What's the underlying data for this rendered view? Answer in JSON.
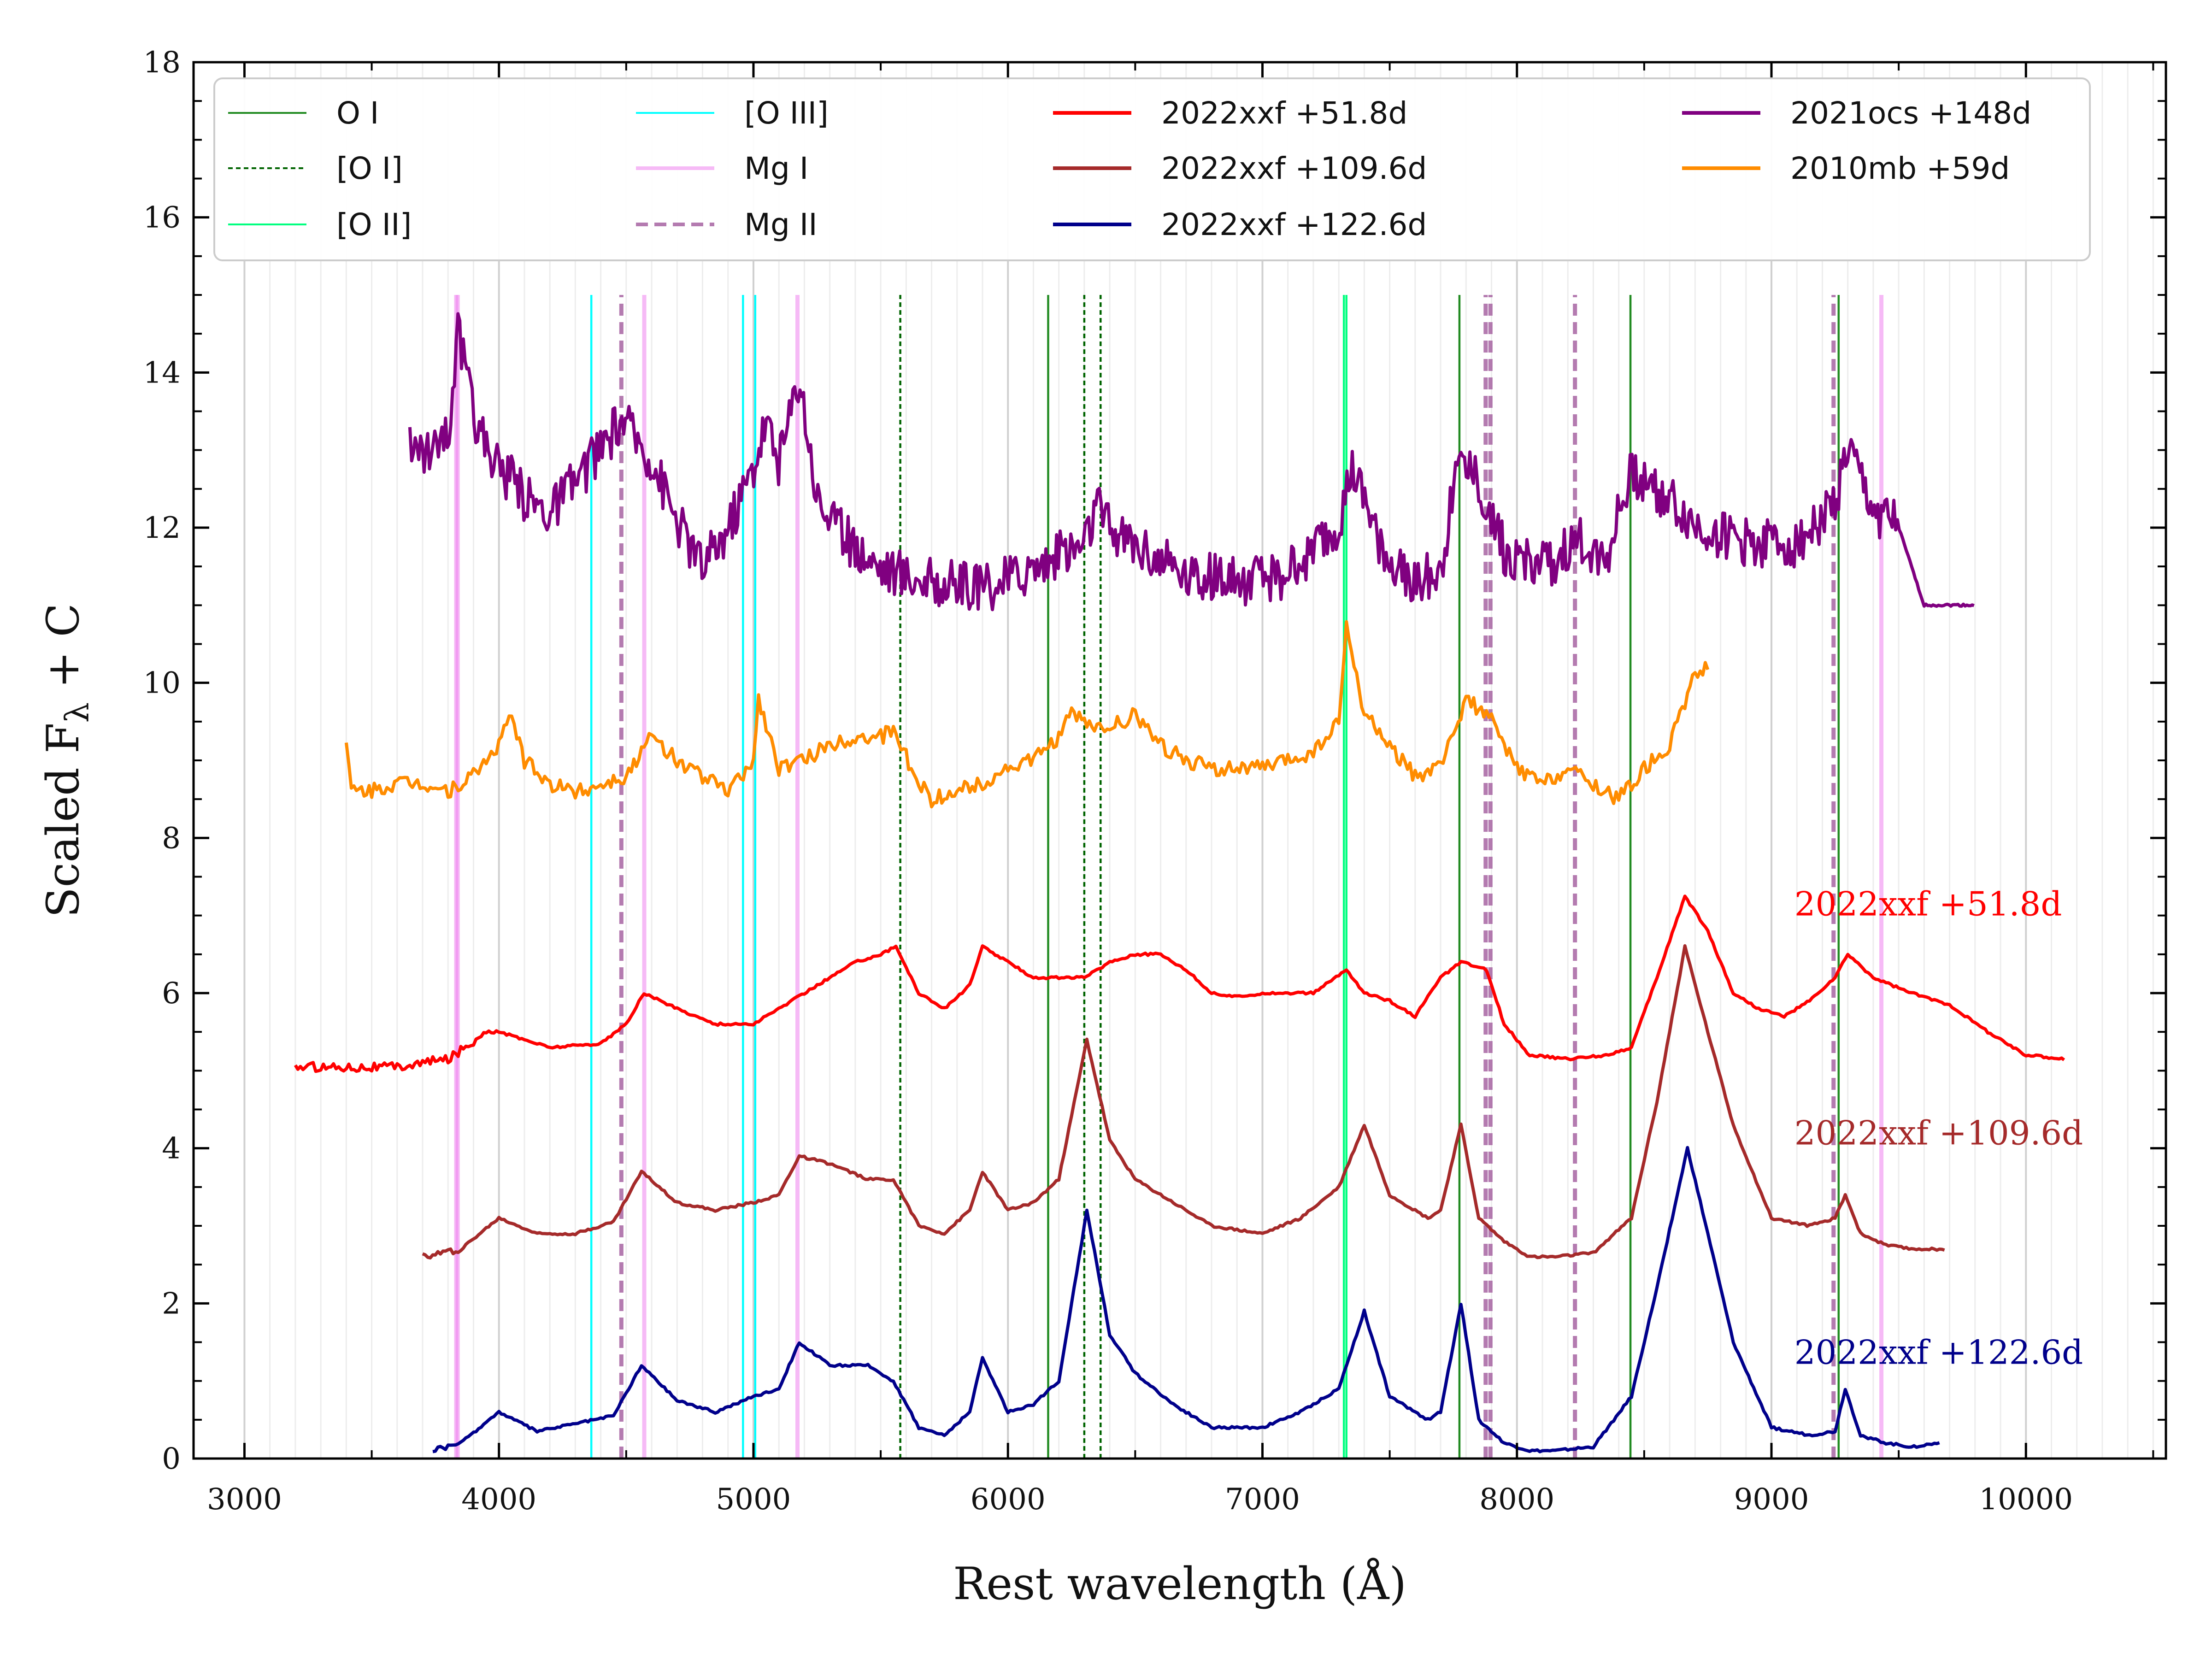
{
  "chart_data": {
    "type": "line",
    "title": "",
    "xlabel": "Rest wavelength (Å)",
    "ylabel_main": "Scaled F",
    "ylabel_sub": "λ",
    "ylabel_tail": " + C",
    "xlim": [
      2800,
      10550
    ],
    "ylim": [
      0,
      18
    ],
    "x_ticks": [
      3000,
      4000,
      5000,
      6000,
      7000,
      8000,
      9000,
      10000
    ],
    "x_tick_labels": [
      "3000",
      "4000",
      "5000",
      "6000",
      "7000",
      "8000",
      "9000",
      "10000"
    ],
    "y_ticks": [
      0,
      2,
      4,
      6,
      8,
      10,
      12,
      14,
      16,
      18
    ],
    "y_tick_labels": [
      "0",
      "2",
      "4",
      "6",
      "8",
      "10",
      "12",
      "14",
      "16",
      "18"
    ],
    "legend": [
      {
        "label": "O I",
        "color": "#228b22",
        "style": "solid",
        "width": 1
      },
      {
        "label": "[O I]",
        "color": "#006400",
        "style": "dotted",
        "width": 1
      },
      {
        "label": "[O II]",
        "color": "#00ff7f",
        "style": "solid",
        "width": 1
      },
      {
        "label": "[O III]",
        "color": "#00ffff",
        "style": "solid",
        "width": 1
      },
      {
        "label": "Mg I",
        "color": "#ee82ee",
        "style": "solid",
        "width": 2
      },
      {
        "label": "Mg II",
        "color": "#9b4f96",
        "style": "dashed",
        "width": 2
      },
      {
        "label": "2022xxf +51.8d",
        "color": "#ff0000",
        "style": "solid",
        "width": 3
      },
      {
        "label": "2022xxf +109.6d",
        "color": "#a52a2a",
        "style": "solid",
        "width": 3
      },
      {
        "label": "2022xxf +122.6d",
        "color": "#00008b",
        "style": "solid",
        "width": 3
      },
      {
        "label": "2021ocs +148d",
        "color": "#800080",
        "style": "solid",
        "width": 3
      },
      {
        "label": "2010mb +59d",
        "color": "#ff8c00",
        "style": "solid",
        "width": 3
      }
    ],
    "line_markers": [
      {
        "ion": "O I",
        "wavelengths": [
          6158,
          7774,
          8446,
          9264
        ]
      },
      {
        "ion": "[O I]",
        "wavelengths": [
          5577,
          6300,
          6364
        ]
      },
      {
        "ion": "[O II]",
        "wavelengths": [
          7320,
          7330
        ]
      },
      {
        "ion": "[O III]",
        "wavelengths": [
          4363,
          4959,
          5007
        ]
      },
      {
        "ion": "Mg I",
        "wavelengths": [
          3832,
          3838,
          4571,
          5173,
          9432
        ]
      },
      {
        "ion": "Mg II",
        "wavelengths": [
          4481,
          7877,
          7896,
          8228,
          9244
        ]
      }
    ],
    "series_labels": [
      {
        "text": "2022xxf +51.8d",
        "color": "#ff0000",
        "x": 9090,
        "y": 7.0
      },
      {
        "text": "2022xxf +109.6d",
        "color": "#a52a2a",
        "x": 9090,
        "y": 4.05
      },
      {
        "text": "2022xxf +122.6d",
        "color": "#00008b",
        "x": 9090,
        "y": 1.22
      }
    ],
    "series": [
      {
        "name": "2022xxf +51.8d",
        "color": "#ff0000",
        "noise": 0.06,
        "noise_until": 3900,
        "x": [
          3200,
          3400,
          3600,
          3800,
          3950,
          4000,
          4200,
          4400,
          4500,
          4570,
          4700,
          4850,
          5000,
          5100,
          5200,
          5400,
          5500,
          5560,
          5650,
          5750,
          5850,
          5900,
          6000,
          6100,
          6200,
          6300,
          6400,
          6500,
          6600,
          6700,
          6800,
          6900,
          7000,
          7200,
          7330,
          7400,
          7500,
          7600,
          7700,
          7780,
          7880,
          7950,
          8050,
          8200,
          8350,
          8450,
          8550,
          8660,
          8750,
          8850,
          8950,
          9050,
          9150,
          9250,
          9300,
          9400,
          9550,
          9700,
          9850,
          10000,
          10150
        ],
        "y": [
          5.05,
          5.05,
          5.05,
          5.15,
          5.5,
          5.5,
          5.3,
          5.35,
          5.6,
          6.0,
          5.8,
          5.6,
          5.6,
          5.8,
          6.0,
          6.4,
          6.5,
          6.6,
          6.0,
          5.8,
          6.1,
          6.6,
          6.4,
          6.2,
          6.2,
          6.2,
          6.4,
          6.5,
          6.5,
          6.3,
          6.0,
          5.95,
          6.0,
          6.0,
          6.3,
          6.0,
          5.9,
          5.7,
          6.2,
          6.4,
          6.3,
          5.6,
          5.2,
          5.15,
          5.2,
          5.3,
          6.2,
          7.25,
          6.8,
          6.0,
          5.8,
          5.7,
          5.9,
          6.2,
          6.5,
          6.2,
          6.0,
          5.85,
          5.5,
          5.2,
          5.15
        ]
      },
      {
        "name": "2022xxf +109.6d",
        "color": "#a52a2a",
        "noise": 0.04,
        "noise_until": 3850,
        "x": [
          3700,
          3850,
          4000,
          4150,
          4300,
          4450,
          4560,
          4700,
          4850,
          5000,
          5100,
          5180,
          5300,
          5450,
          5550,
          5650,
          5750,
          5850,
          5900,
          6000,
          6100,
          6200,
          6310,
          6400,
          6500,
          6650,
          6800,
          7000,
          7150,
          7300,
          7400,
          7500,
          7650,
          7700,
          7780,
          7850,
          7950,
          8050,
          8150,
          8300,
          8450,
          8550,
          8660,
          8750,
          8850,
          9000,
          9150,
          9250,
          9290,
          9350,
          9450,
          9550,
          9680
        ],
        "y": [
          2.6,
          2.7,
          3.1,
          2.9,
          2.9,
          3.05,
          3.7,
          3.3,
          3.2,
          3.3,
          3.4,
          3.9,
          3.8,
          3.6,
          3.6,
          3.0,
          2.9,
          3.2,
          3.7,
          3.2,
          3.3,
          3.6,
          5.4,
          4.1,
          3.6,
          3.3,
          3.0,
          2.9,
          3.1,
          3.5,
          4.3,
          3.4,
          3.1,
          3.2,
          4.3,
          3.1,
          2.8,
          2.6,
          2.6,
          2.65,
          3.1,
          4.6,
          6.6,
          5.5,
          4.3,
          3.1,
          3.0,
          3.1,
          3.4,
          2.9,
          2.75,
          2.7,
          2.7
        ]
      },
      {
        "name": "2022xxf +122.6d",
        "color": "#00008b",
        "noise": 0.03,
        "noise_until": 3800,
        "x": [
          3740,
          3850,
          4000,
          4150,
          4300,
          4450,
          4560,
          4700,
          4850,
          5000,
          5100,
          5180,
          5300,
          5450,
          5550,
          5650,
          5750,
          5850,
          5900,
          6000,
          6100,
          6200,
          6310,
          6400,
          6500,
          6650,
          6800,
          7000,
          7150,
          7300,
          7400,
          7500,
          7650,
          7700,
          7780,
          7850,
          7950,
          8050,
          8150,
          8300,
          8450,
          8550,
          8670,
          8750,
          8850,
          9000,
          9150,
          9250,
          9290,
          9350,
          9450,
          9550,
          9660
        ],
        "y": [
          0.1,
          0.2,
          0.6,
          0.35,
          0.45,
          0.55,
          1.2,
          0.75,
          0.6,
          0.8,
          0.9,
          1.5,
          1.2,
          1.2,
          1.0,
          0.4,
          0.3,
          0.6,
          1.3,
          0.6,
          0.7,
          1.0,
          3.2,
          1.6,
          1.1,
          0.7,
          0.4,
          0.4,
          0.6,
          0.9,
          1.9,
          0.8,
          0.5,
          0.6,
          2.0,
          0.5,
          0.2,
          0.1,
          0.1,
          0.15,
          0.8,
          2.2,
          4.0,
          2.9,
          1.5,
          0.4,
          0.3,
          0.35,
          0.9,
          0.3,
          0.2,
          0.15,
          0.2
        ]
      },
      {
        "name": "2010mb +59d",
        "color": "#ff8c00",
        "noise": 0.1,
        "noise_until": 10000,
        "x": [
          3400,
          3420,
          3500,
          3600,
          3700,
          3800,
          3900,
          4000,
          4050,
          4100,
          4200,
          4300,
          4400,
          4500,
          4600,
          4700,
          4800,
          4900,
          5000,
          5020,
          5100,
          5200,
          5300,
          5400,
          5500,
          5550,
          5650,
          5700,
          5800,
          5900,
          6000,
          6100,
          6200,
          6250,
          6350,
          6450,
          6500,
          6600,
          6700,
          6800,
          7000,
          7200,
          7300,
          7330,
          7400,
          7500,
          7600,
          7700,
          7800,
          7900,
          8000,
          8100,
          8200,
          8300,
          8400,
          8500,
          8600,
          8700,
          8750
        ],
        "y": [
          9.2,
          8.6,
          8.6,
          8.7,
          8.7,
          8.6,
          8.8,
          9.2,
          9.6,
          9.0,
          8.7,
          8.6,
          8.7,
          8.8,
          9.3,
          9.0,
          8.8,
          8.6,
          9.0,
          9.8,
          8.9,
          9.0,
          9.2,
          9.3,
          9.3,
          9.4,
          8.7,
          8.5,
          8.6,
          8.7,
          8.9,
          9.0,
          9.3,
          9.6,
          9.4,
          9.5,
          9.6,
          9.2,
          9.0,
          8.9,
          8.9,
          9.1,
          9.5,
          10.7,
          9.6,
          9.2,
          8.8,
          8.9,
          9.8,
          9.5,
          8.9,
          8.7,
          8.9,
          8.7,
          8.5,
          8.9,
          9.2,
          10.1,
          10.2
        ]
      },
      {
        "name": "2021ocs +148d",
        "color": "#800080",
        "noise": 0.32,
        "noise_until": 9500,
        "x": [
          3650,
          3700,
          3800,
          3840,
          3900,
          4000,
          4100,
          4200,
          4300,
          4400,
          4480,
          4600,
          4700,
          4800,
          4900,
          5000,
          5050,
          5100,
          5180,
          5250,
          5350,
          5500,
          5700,
          5900,
          6100,
          6300,
          6350,
          6400,
          6500,
          6700,
          6900,
          7100,
          7300,
          7350,
          7400,
          7500,
          7600,
          7700,
          7780,
          7850,
          7950,
          8100,
          8250,
          8350,
          8450,
          8550,
          8700,
          8900,
          9100,
          9250,
          9300,
          9400,
          9500,
          9600,
          9650,
          9800
        ],
        "y": [
          13.0,
          13.0,
          13.2,
          14.5,
          13.4,
          12.8,
          12.4,
          12.2,
          12.6,
          13.0,
          13.4,
          12.9,
          12.1,
          11.5,
          12.0,
          12.8,
          13.4,
          12.8,
          14.0,
          12.4,
          11.9,
          11.5,
          11.3,
          11.2,
          11.5,
          11.8,
          12.3,
          12.0,
          11.8,
          11.4,
          11.3,
          11.4,
          12.0,
          12.7,
          12.3,
          11.5,
          11.3,
          11.5,
          13.0,
          12.6,
          11.7,
          11.5,
          11.8,
          11.6,
          12.7,
          12.5,
          12.0,
          11.8,
          11.8,
          12.3,
          13.0,
          12.2,
          12.0,
          11.0,
          11.0,
          11.0
        ]
      }
    ]
  }
}
